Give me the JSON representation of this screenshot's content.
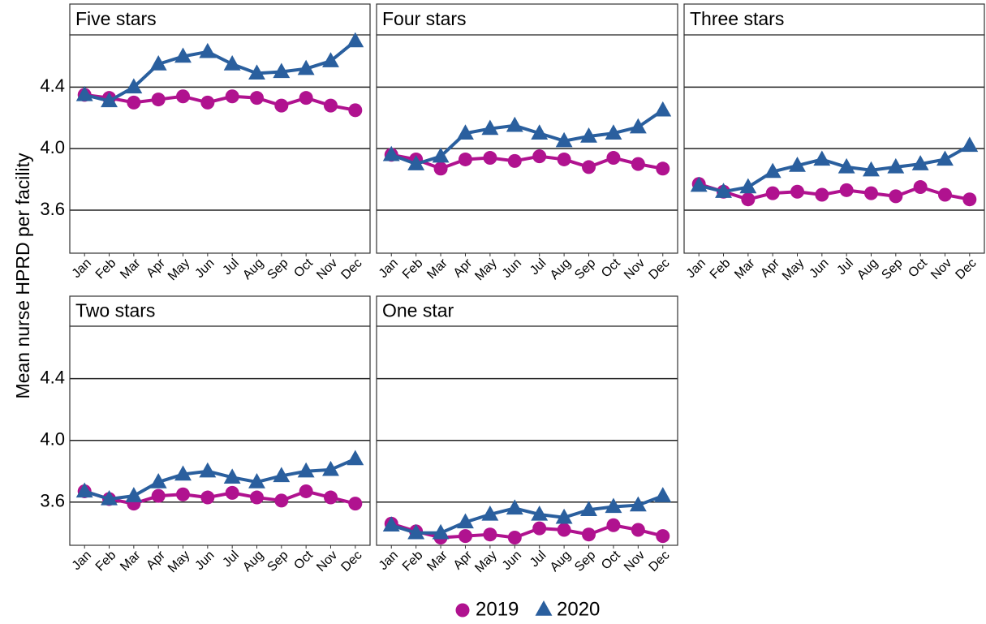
{
  "ylabel": "Mean nurse HPRD per facility",
  "chart_data": [
    {
      "type": "line",
      "title": "Five stars",
      "categories": [
        "Jan",
        "Feb",
        "Mar",
        "Apr",
        "May",
        "Jun",
        "Jul",
        "Aug",
        "Sep",
        "Oct",
        "Nov",
        "Dec"
      ],
      "ylim": [
        3.32,
        4.74
      ],
      "yticks": [
        3.6,
        {
          "value": 4,
          "label": "4.0"
        },
        4.4
      ],
      "grid": true,
      "series": [
        {
          "name": "2019",
          "color": "#b0128f",
          "marker": "circle",
          "values": [
            4.35,
            4.33,
            4.3,
            4.32,
            4.34,
            4.3,
            4.34,
            4.33,
            4.28,
            4.33,
            4.28,
            4.25
          ]
        },
        {
          "name": "2020",
          "color": "#2a5f9e",
          "marker": "triangle",
          "values": [
            4.35,
            4.31,
            4.4,
            4.55,
            4.6,
            4.63,
            4.55,
            4.49,
            4.5,
            4.52,
            4.57,
            4.7
          ]
        }
      ]
    },
    {
      "type": "line",
      "title": "Four stars",
      "categories": [
        "Jan",
        "Feb",
        "Mar",
        "Apr",
        "May",
        "Jun",
        "Jul",
        "Aug",
        "Sep",
        "Oct",
        "Nov",
        "Dec"
      ],
      "ylim": [
        3.32,
        4.74
      ],
      "yticks": [
        3.6,
        {
          "value": 4,
          "label": "4.0"
        },
        4.4
      ],
      "grid": true,
      "series": [
        {
          "name": "2019",
          "color": "#b0128f",
          "marker": "circle",
          "values": [
            3.96,
            3.93,
            3.87,
            3.93,
            3.94,
            3.92,
            3.95,
            3.93,
            3.88,
            3.94,
            3.9,
            3.87
          ]
        },
        {
          "name": "2020",
          "color": "#2a5f9e",
          "marker": "triangle",
          "values": [
            3.96,
            3.9,
            3.95,
            4.1,
            4.13,
            4.15,
            4.1,
            4.05,
            4.08,
            4.1,
            4.14,
            4.25
          ]
        }
      ]
    },
    {
      "type": "line",
      "title": "Three stars",
      "categories": [
        "Jan",
        "Feb",
        "Mar",
        "Apr",
        "May",
        "Jun",
        "Jul",
        "Aug",
        "Sep",
        "Oct",
        "Nov",
        "Dec"
      ],
      "ylim": [
        3.32,
        4.74
      ],
      "yticks": [
        3.6,
        {
          "value": 4,
          "label": "4.0"
        },
        4.4
      ],
      "grid": true,
      "series": [
        {
          "name": "2019",
          "color": "#b0128f",
          "marker": "circle",
          "values": [
            3.77,
            3.72,
            3.67,
            3.71,
            3.72,
            3.7,
            3.73,
            3.71,
            3.69,
            3.75,
            3.7,
            3.67
          ]
        },
        {
          "name": "2020",
          "color": "#2a5f9e",
          "marker": "triangle",
          "values": [
            3.76,
            3.72,
            3.75,
            3.85,
            3.89,
            3.93,
            3.88,
            3.86,
            3.88,
            3.9,
            3.93,
            4.02
          ]
        }
      ]
    },
    {
      "type": "line",
      "title": "Two stars",
      "categories": [
        "Jan",
        "Feb",
        "Mar",
        "Apr",
        "May",
        "Jun",
        "Jul",
        "Aug",
        "Sep",
        "Oct",
        "Nov",
        "Dec"
      ],
      "ylim": [
        3.32,
        4.74
      ],
      "yticks": [
        3.6,
        {
          "value": 4,
          "label": "4.0"
        },
        4.4
      ],
      "grid": true,
      "series": [
        {
          "name": "2019",
          "color": "#b0128f",
          "marker": "circle",
          "values": [
            3.67,
            3.62,
            3.59,
            3.64,
            3.65,
            3.63,
            3.66,
            3.63,
            3.61,
            3.67,
            3.63,
            3.59
          ]
        },
        {
          "name": "2020",
          "color": "#2a5f9e",
          "marker": "triangle",
          "values": [
            3.67,
            3.62,
            3.64,
            3.73,
            3.78,
            3.8,
            3.76,
            3.73,
            3.77,
            3.8,
            3.81,
            3.88
          ]
        }
      ]
    },
    {
      "type": "line",
      "title": "One star",
      "categories": [
        "Jan",
        "Feb",
        "Mar",
        "Apr",
        "May",
        "Jun",
        "Jul",
        "Aug",
        "Sep",
        "Oct",
        "Nov",
        "Dec"
      ],
      "ylim": [
        3.32,
        4.74
      ],
      "yticks": [
        3.6,
        {
          "value": 4,
          "label": "4.0"
        },
        4.4
      ],
      "grid": true,
      "series": [
        {
          "name": "2019",
          "color": "#b0128f",
          "marker": "circle",
          "values": [
            3.46,
            3.41,
            3.37,
            3.38,
            3.39,
            3.37,
            3.43,
            3.42,
            3.39,
            3.45,
            3.42,
            3.38
          ]
        },
        {
          "name": "2020",
          "color": "#2a5f9e",
          "marker": "triangle",
          "values": [
            3.45,
            3.4,
            3.4,
            3.47,
            3.52,
            3.56,
            3.52,
            3.5,
            3.55,
            3.57,
            3.58,
            3.64
          ]
        }
      ]
    }
  ]
}
